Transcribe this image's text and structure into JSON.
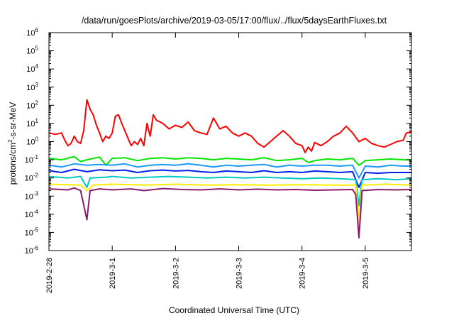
{
  "chart_data": {
    "type": "line",
    "title": "/data/run/goesPlots/archive/2019-03-05/17:00/flux/../flux/5daysEarthFluxes.txt",
    "xlabel": "Coordinated Universal Time (UTC)",
    "ylabel": {
      "base": "protons/cm",
      "sup": "2",
      "rest": "-s-sr-MeV"
    },
    "yscale": "log",
    "ylim": [
      1e-06,
      1000000.0
    ],
    "xlim": [
      0,
      5.73
    ],
    "x_unit": "days since 2019-02-28 00:00 UTC",
    "x_ticks": [
      {
        "x": 0,
        "label": "2019-2-28"
      },
      {
        "x": 1,
        "label": "2019-3-1"
      },
      {
        "x": 2,
        "label": "2019-3-2"
      },
      {
        "x": 3,
        "label": "2019-3-3"
      },
      {
        "x": 4,
        "label": "2019-3-4"
      },
      {
        "x": 5,
        "label": "2019-3-5"
      }
    ],
    "y_ticks": [
      {
        "exp": -6,
        "label": "10",
        "sup": "-6"
      },
      {
        "exp": -5,
        "label": "10",
        "sup": "-5"
      },
      {
        "exp": -4,
        "label": "10",
        "sup": "-4"
      },
      {
        "exp": -3,
        "label": "10",
        "sup": "-3"
      },
      {
        "exp": -2,
        "label": "10",
        "sup": "-2"
      },
      {
        "exp": -1,
        "label": "10",
        "sup": "-1"
      },
      {
        "exp": 0,
        "label": "10",
        "sup": "0"
      },
      {
        "exp": 1,
        "label": "10",
        "sup": "1"
      },
      {
        "exp": 2,
        "label": "10",
        "sup": "2"
      },
      {
        "exp": 3,
        "label": "10",
        "sup": "3"
      },
      {
        "exp": 4,
        "label": "10",
        "sup": "4"
      },
      {
        "exp": 5,
        "label": "10",
        "sup": "5"
      },
      {
        "exp": 6,
        "label": "10",
        "sup": "6"
      }
    ],
    "grid": false,
    "series": [
      {
        "color": "#ff0000",
        "points": [
          [
            0,
            3
          ],
          [
            0.1,
            2.5
          ],
          [
            0.2,
            3
          ],
          [
            0.25,
            1.2
          ],
          [
            0.3,
            0.6
          ],
          [
            0.35,
            0.8
          ],
          [
            0.4,
            2
          ],
          [
            0.45,
            1
          ],
          [
            0.5,
            0.8
          ],
          [
            0.55,
            4
          ],
          [
            0.6,
            200
          ],
          [
            0.65,
            60
          ],
          [
            0.7,
            30
          ],
          [
            0.75,
            8
          ],
          [
            0.8,
            3
          ],
          [
            0.85,
            1
          ],
          [
            0.9,
            2
          ],
          [
            0.95,
            1.5
          ],
          [
            1.0,
            3
          ],
          [
            1.05,
            25
          ],
          [
            1.1,
            30
          ],
          [
            1.15,
            10
          ],
          [
            1.2,
            4
          ],
          [
            1.25,
            1.5
          ],
          [
            1.3,
            0.6
          ],
          [
            1.35,
            1
          ],
          [
            1.4,
            0.7
          ],
          [
            1.45,
            1.5
          ],
          [
            1.5,
            0.6
          ],
          [
            1.55,
            10
          ],
          [
            1.6,
            2
          ],
          [
            1.65,
            30
          ],
          [
            1.7,
            15
          ],
          [
            1.8,
            10
          ],
          [
            1.9,
            5
          ],
          [
            2.0,
            8
          ],
          [
            2.1,
            6
          ],
          [
            2.2,
            12
          ],
          [
            2.3,
            4
          ],
          [
            2.4,
            3
          ],
          [
            2.5,
            2.5
          ],
          [
            2.6,
            20
          ],
          [
            2.7,
            5
          ],
          [
            2.8,
            7
          ],
          [
            2.9,
            3
          ],
          [
            3.0,
            2
          ],
          [
            3.1,
            3
          ],
          [
            3.2,
            2
          ],
          [
            3.3,
            0.8
          ],
          [
            3.4,
            0.5
          ],
          [
            3.5,
            1
          ],
          [
            3.6,
            2
          ],
          [
            3.7,
            4
          ],
          [
            3.8,
            2
          ],
          [
            3.9,
            0.8
          ],
          [
            4.0,
            0.6
          ],
          [
            4.05,
            0.25
          ],
          [
            4.1,
            0.5
          ],
          [
            4.15,
            0.3
          ],
          [
            4.2,
            0.9
          ],
          [
            4.3,
            0.6
          ],
          [
            4.4,
            1
          ],
          [
            4.5,
            2
          ],
          [
            4.6,
            3
          ],
          [
            4.7,
            7
          ],
          [
            4.8,
            3
          ],
          [
            4.9,
            1
          ],
          [
            5.0,
            1.5
          ],
          [
            5.1,
            0.8
          ],
          [
            5.2,
            0.6
          ],
          [
            5.3,
            0.5
          ],
          [
            5.4,
            0.7
          ],
          [
            5.5,
            1
          ],
          [
            5.6,
            1.2
          ],
          [
            5.65,
            3
          ],
          [
            5.73,
            3.5
          ]
        ]
      },
      {
        "color": "#00e600",
        "points": [
          [
            0,
            0.12
          ],
          [
            0.2,
            0.1
          ],
          [
            0.4,
            0.15
          ],
          [
            0.5,
            0.08
          ],
          [
            0.6,
            0.1
          ],
          [
            0.8,
            0.14
          ],
          [
            0.9,
            0.05
          ],
          [
            1.0,
            0.12
          ],
          [
            1.2,
            0.13
          ],
          [
            1.4,
            0.09
          ],
          [
            1.6,
            0.12
          ],
          [
            1.8,
            0.13
          ],
          [
            2.0,
            0.11
          ],
          [
            2.2,
            0.13
          ],
          [
            2.4,
            0.12
          ],
          [
            2.6,
            0.1
          ],
          [
            2.8,
            0.12
          ],
          [
            3.0,
            0.11
          ],
          [
            3.2,
            0.1
          ],
          [
            3.4,
            0.13
          ],
          [
            3.6,
            0.09
          ],
          [
            3.8,
            0.1
          ],
          [
            4.0,
            0.12
          ],
          [
            4.1,
            0.07
          ],
          [
            4.2,
            0.09
          ],
          [
            4.4,
            0.11
          ],
          [
            4.6,
            0.1
          ],
          [
            4.8,
            0.12
          ],
          [
            4.9,
            0.05
          ],
          [
            5.0,
            0.09
          ],
          [
            5.2,
            0.1
          ],
          [
            5.4,
            0.11
          ],
          [
            5.6,
            0.1
          ],
          [
            5.73,
            0.1
          ]
        ]
      },
      {
        "color": "#1a9aff",
        "points": [
          [
            0,
            0.05
          ],
          [
            0.2,
            0.04
          ],
          [
            0.4,
            0.06
          ],
          [
            0.6,
            0.05
          ],
          [
            0.8,
            0.055
          ],
          [
            1.0,
            0.05
          ],
          [
            1.2,
            0.06
          ],
          [
            1.4,
            0.04
          ],
          [
            1.6,
            0.05
          ],
          [
            1.8,
            0.055
          ],
          [
            2.0,
            0.05
          ],
          [
            2.2,
            0.06
          ],
          [
            2.4,
            0.05
          ],
          [
            2.6,
            0.04
          ],
          [
            2.8,
            0.05
          ],
          [
            3.0,
            0.045
          ],
          [
            3.2,
            0.05
          ],
          [
            3.4,
            0.055
          ],
          [
            3.6,
            0.04
          ],
          [
            3.8,
            0.05
          ],
          [
            4.0,
            0.045
          ],
          [
            4.2,
            0.05
          ],
          [
            4.4,
            0.05
          ],
          [
            4.6,
            0.045
          ],
          [
            4.8,
            0.05
          ],
          [
            4.9,
            0.01
          ],
          [
            5.0,
            0.045
          ],
          [
            5.2,
            0.04
          ],
          [
            5.4,
            0.05
          ],
          [
            5.6,
            0.045
          ],
          [
            5.73,
            0.045
          ]
        ]
      },
      {
        "color": "#0022ee",
        "points": [
          [
            0,
            0.025
          ],
          [
            0.2,
            0.02
          ],
          [
            0.4,
            0.03
          ],
          [
            0.6,
            0.022
          ],
          [
            0.8,
            0.028
          ],
          [
            1.0,
            0.025
          ],
          [
            1.2,
            0.027
          ],
          [
            1.4,
            0.02
          ],
          [
            1.6,
            0.025
          ],
          [
            1.8,
            0.027
          ],
          [
            2.0,
            0.024
          ],
          [
            2.2,
            0.026
          ],
          [
            2.4,
            0.022
          ],
          [
            2.6,
            0.02
          ],
          [
            2.8,
            0.024
          ],
          [
            3.0,
            0.022
          ],
          [
            3.2,
            0.02
          ],
          [
            3.4,
            0.025
          ],
          [
            3.6,
            0.02
          ],
          [
            3.8,
            0.022
          ],
          [
            4.0,
            0.02
          ],
          [
            4.2,
            0.024
          ],
          [
            4.4,
            0.022
          ],
          [
            4.6,
            0.02
          ],
          [
            4.8,
            0.022
          ],
          [
            4.9,
            0.003
          ],
          [
            5.0,
            0.02
          ],
          [
            5.2,
            0.018
          ],
          [
            5.4,
            0.02
          ],
          [
            5.6,
            0.02
          ],
          [
            5.73,
            0.02
          ]
        ]
      },
      {
        "color": "#00c8c8",
        "points": [
          [
            0,
            0.012
          ],
          [
            0.3,
            0.01
          ],
          [
            0.5,
            0.012
          ],
          [
            0.6,
            0.003
          ],
          [
            0.65,
            0.01
          ],
          [
            0.9,
            0.011
          ],
          [
            1.0,
            0.012
          ],
          [
            1.3,
            0.01
          ],
          [
            1.6,
            0.011
          ],
          [
            1.9,
            0.012
          ],
          [
            2.2,
            0.011
          ],
          [
            2.5,
            0.01
          ],
          [
            2.8,
            0.011
          ],
          [
            3.1,
            0.01
          ],
          [
            3.4,
            0.011
          ],
          [
            3.7,
            0.01
          ],
          [
            4.0,
            0.009
          ],
          [
            4.3,
            0.01
          ],
          [
            4.6,
            0.009
          ],
          [
            4.85,
            0.008
          ],
          [
            4.9,
            0.0003
          ],
          [
            4.95,
            0.008
          ],
          [
            5.2,
            0.009
          ],
          [
            5.5,
            0.008
          ],
          [
            5.73,
            0.009
          ]
        ]
      },
      {
        "color": "#ffee00",
        "points": [
          [
            0,
            0.0045
          ],
          [
            0.5,
            0.004
          ],
          [
            0.6,
            0.002
          ],
          [
            0.7,
            0.004
          ],
          [
            1.0,
            0.0045
          ],
          [
            1.5,
            0.004
          ],
          [
            2.0,
            0.0045
          ],
          [
            2.5,
            0.004
          ],
          [
            3.0,
            0.0042
          ],
          [
            3.5,
            0.004
          ],
          [
            4.0,
            0.0042
          ],
          [
            4.5,
            0.004
          ],
          [
            4.85,
            0.004
          ],
          [
            4.9,
            3e-05
          ],
          [
            4.95,
            0.004
          ],
          [
            5.3,
            0.0045
          ],
          [
            5.73,
            0.004
          ]
        ]
      },
      {
        "color": "#8b1a6b",
        "points": [
          [
            0,
            0.0025
          ],
          [
            0.3,
            0.0022
          ],
          [
            0.4,
            0.0028
          ],
          [
            0.5,
            0.002
          ],
          [
            0.6,
            5e-05
          ],
          [
            0.65,
            0.002
          ],
          [
            0.8,
            0.0025
          ],
          [
            1.0,
            0.0022
          ],
          [
            1.3,
            0.0025
          ],
          [
            1.5,
            0.002
          ],
          [
            1.8,
            0.0026
          ],
          [
            2.1,
            0.0023
          ],
          [
            2.4,
            0.0022
          ],
          [
            2.7,
            0.0025
          ],
          [
            3.0,
            0.0022
          ],
          [
            3.3,
            0.0024
          ],
          [
            3.6,
            0.0022
          ],
          [
            3.9,
            0.0023
          ],
          [
            4.2,
            0.0021
          ],
          [
            4.5,
            0.0022
          ],
          [
            4.8,
            0.0023
          ],
          [
            4.85,
            0.0012
          ],
          [
            4.9,
            5e-06
          ],
          [
            4.95,
            0.002
          ],
          [
            5.2,
            0.0023
          ],
          [
            5.5,
            0.0022
          ],
          [
            5.73,
            0.0023
          ]
        ]
      }
    ]
  }
}
